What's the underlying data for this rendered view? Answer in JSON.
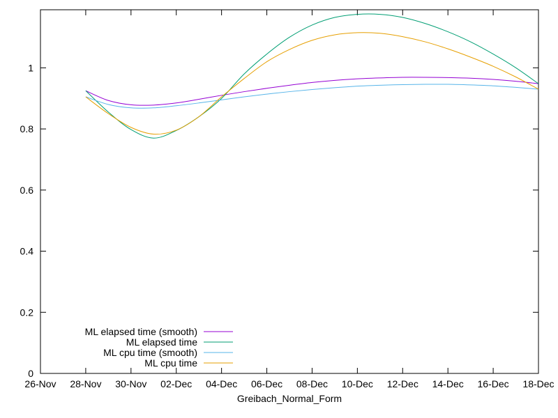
{
  "chart_data": {
    "type": "line",
    "title": "",
    "xlabel": "Greibach_Normal_Form",
    "ylabel": "",
    "x_ticks": [
      "26-Nov",
      "28-Nov",
      "30-Nov",
      "02-Dec",
      "04-Dec",
      "06-Dec",
      "08-Dec",
      "10-Dec",
      "12-Dec",
      "14-Dec",
      "16-Dec",
      "18-Dec"
    ],
    "xlim": [
      "26-Nov",
      "18-Dec"
    ],
    "y_ticks": [
      "0",
      "0.2",
      "0.4",
      "0.6",
      "0.8",
      "1"
    ],
    "ylim": [
      0,
      1.19
    ],
    "grid": false,
    "legend_position": "bottom-left",
    "series": [
      {
        "name": "ML elapsed time (smooth)",
        "color": "#9400d3",
        "points": [
          {
            "x": "28-Nov",
            "y": 0.925
          },
          {
            "x": "29-Nov",
            "y": 0.893
          },
          {
            "x": "30-Nov",
            "y": 0.879
          },
          {
            "x": "01-Dec",
            "y": 0.878
          },
          {
            "x": "02-Dec",
            "y": 0.885
          },
          {
            "x": "03-Dec",
            "y": 0.897
          },
          {
            "x": "04-Dec",
            "y": 0.91
          },
          {
            "x": "05-Dec",
            "y": 0.922
          },
          {
            "x": "06-Dec",
            "y": 0.933
          },
          {
            "x": "07-Dec",
            "y": 0.943
          },
          {
            "x": "08-Dec",
            "y": 0.952
          },
          {
            "x": "09-Dec",
            "y": 0.959
          },
          {
            "x": "10-Dec",
            "y": 0.964
          },
          {
            "x": "11-Dec",
            "y": 0.967
          },
          {
            "x": "12-Dec",
            "y": 0.969
          },
          {
            "x": "13-Dec",
            "y": 0.969
          },
          {
            "x": "14-Dec",
            "y": 0.968
          },
          {
            "x": "15-Dec",
            "y": 0.966
          },
          {
            "x": "16-Dec",
            "y": 0.962
          },
          {
            "x": "17-Dec",
            "y": 0.956
          },
          {
            "x": "18-Dec",
            "y": 0.948
          }
        ]
      },
      {
        "name": "ML elapsed time",
        "color": "#009e73",
        "points": [
          {
            "x": "28-Nov",
            "y": 0.925
          },
          {
            "x": "29-Nov",
            "y": 0.855
          },
          {
            "x": "30-Nov",
            "y": 0.798
          },
          {
            "x": "01-Dec",
            "y": 0.77
          },
          {
            "x": "02-Dec",
            "y": 0.795
          },
          {
            "x": "03-Dec",
            "y": 0.84
          },
          {
            "x": "04-Dec",
            "y": 0.9
          },
          {
            "x": "05-Dec",
            "y": 0.98
          },
          {
            "x": "06-Dec",
            "y": 1.045
          },
          {
            "x": "07-Dec",
            "y": 1.1
          },
          {
            "x": "08-Dec",
            "y": 1.14
          },
          {
            "x": "09-Dec",
            "y": 1.165
          },
          {
            "x": "10-Dec",
            "y": 1.175
          },
          {
            "x": "11-Dec",
            "y": 1.175
          },
          {
            "x": "12-Dec",
            "y": 1.165
          },
          {
            "x": "13-Dec",
            "y": 1.145
          },
          {
            "x": "14-Dec",
            "y": 1.118
          },
          {
            "x": "15-Dec",
            "y": 1.085
          },
          {
            "x": "16-Dec",
            "y": 1.045
          },
          {
            "x": "17-Dec",
            "y": 1.0
          },
          {
            "x": "18-Dec",
            "y": 0.948
          }
        ]
      },
      {
        "name": "ML cpu time (smooth)",
        "color": "#56b4e9",
        "points": [
          {
            "x": "28-Nov",
            "y": 0.905
          },
          {
            "x": "29-Nov",
            "y": 0.88
          },
          {
            "x": "30-Nov",
            "y": 0.869
          },
          {
            "x": "01-Dec",
            "y": 0.869
          },
          {
            "x": "02-Dec",
            "y": 0.876
          },
          {
            "x": "03-Dec",
            "y": 0.885
          },
          {
            "x": "04-Dec",
            "y": 0.895
          },
          {
            "x": "05-Dec",
            "y": 0.905
          },
          {
            "x": "06-Dec",
            "y": 0.914
          },
          {
            "x": "07-Dec",
            "y": 0.922
          },
          {
            "x": "08-Dec",
            "y": 0.929
          },
          {
            "x": "09-Dec",
            "y": 0.935
          },
          {
            "x": "10-Dec",
            "y": 0.94
          },
          {
            "x": "11-Dec",
            "y": 0.943
          },
          {
            "x": "12-Dec",
            "y": 0.945
          },
          {
            "x": "13-Dec",
            "y": 0.946
          },
          {
            "x": "14-Dec",
            "y": 0.946
          },
          {
            "x": "15-Dec",
            "y": 0.944
          },
          {
            "x": "16-Dec",
            "y": 0.941
          },
          {
            "x": "17-Dec",
            "y": 0.936
          },
          {
            "x": "18-Dec",
            "y": 0.93
          }
        ]
      },
      {
        "name": "ML cpu time",
        "color": "#e69f00",
        "points": [
          {
            "x": "28-Nov",
            "y": 0.905
          },
          {
            "x": "29-Nov",
            "y": 0.85
          },
          {
            "x": "30-Nov",
            "y": 0.805
          },
          {
            "x": "01-Dec",
            "y": 0.783
          },
          {
            "x": "02-Dec",
            "y": 0.796
          },
          {
            "x": "03-Dec",
            "y": 0.84
          },
          {
            "x": "04-Dec",
            "y": 0.905
          },
          {
            "x": "05-Dec",
            "y": 0.965
          },
          {
            "x": "06-Dec",
            "y": 1.02
          },
          {
            "x": "07-Dec",
            "y": 1.06
          },
          {
            "x": "08-Dec",
            "y": 1.09
          },
          {
            "x": "09-Dec",
            "y": 1.108
          },
          {
            "x": "10-Dec",
            "y": 1.115
          },
          {
            "x": "11-Dec",
            "y": 1.113
          },
          {
            "x": "12-Dec",
            "y": 1.102
          },
          {
            "x": "13-Dec",
            "y": 1.085
          },
          {
            "x": "14-Dec",
            "y": 1.062
          },
          {
            "x": "15-Dec",
            "y": 1.035
          },
          {
            "x": "16-Dec",
            "y": 1.005
          },
          {
            "x": "17-Dec",
            "y": 0.97
          },
          {
            "x": "18-Dec",
            "y": 0.93
          }
        ]
      }
    ]
  }
}
